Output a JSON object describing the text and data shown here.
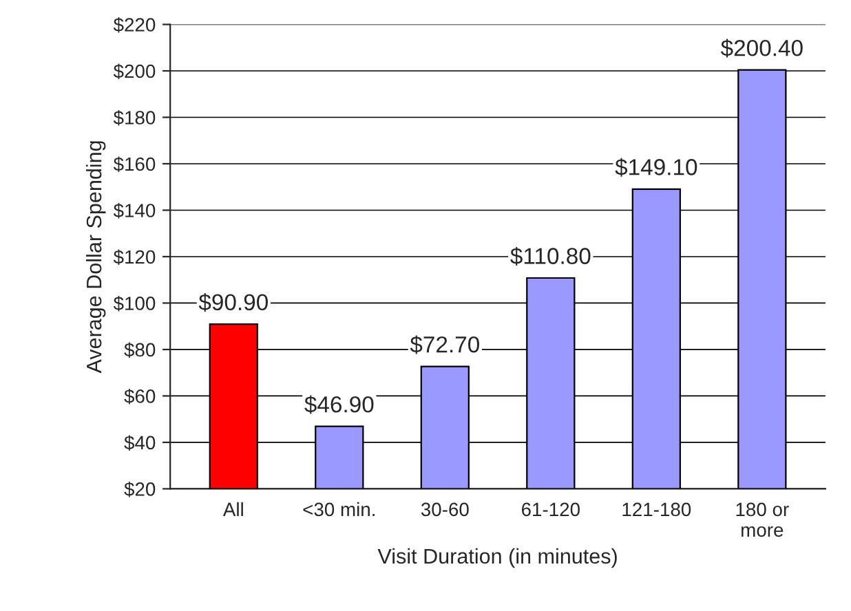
{
  "chart_data": {
    "type": "bar",
    "xlabel": "Visit Duration (in minutes)",
    "ylabel": "Average Dollar Spending",
    "categories": [
      "All",
      "<30 min.",
      "30-60",
      "61-120",
      "121-180",
      "180 or\nmore"
    ],
    "values": [
      90.9,
      46.9,
      72.7,
      110.8,
      149.1,
      200.4
    ],
    "colors": [
      "#ff0000",
      "#9999ff",
      "#9999ff",
      "#9999ff",
      "#9999ff",
      "#9999ff"
    ],
    "value_labels": [
      "$90.90",
      "$46.90",
      "$72.70",
      "$110.80",
      "$149.10",
      "$200.40"
    ],
    "ylim": [
      20,
      220
    ],
    "yticks": [
      {
        "value": 20,
        "label": "$20"
      },
      {
        "value": 40,
        "label": "$40"
      },
      {
        "value": 60,
        "label": "$60"
      },
      {
        "value": 80,
        "label": "$80"
      },
      {
        "value": 100,
        "label": "$100"
      },
      {
        "value": 120,
        "label": "$120"
      },
      {
        "value": 140,
        "label": "$140"
      },
      {
        "value": 160,
        "label": "$160"
      },
      {
        "value": 180,
        "label": "$180"
      },
      {
        "value": 200,
        "label": "$200"
      },
      {
        "value": 220,
        "label": "$220"
      }
    ],
    "grid": "y"
  }
}
